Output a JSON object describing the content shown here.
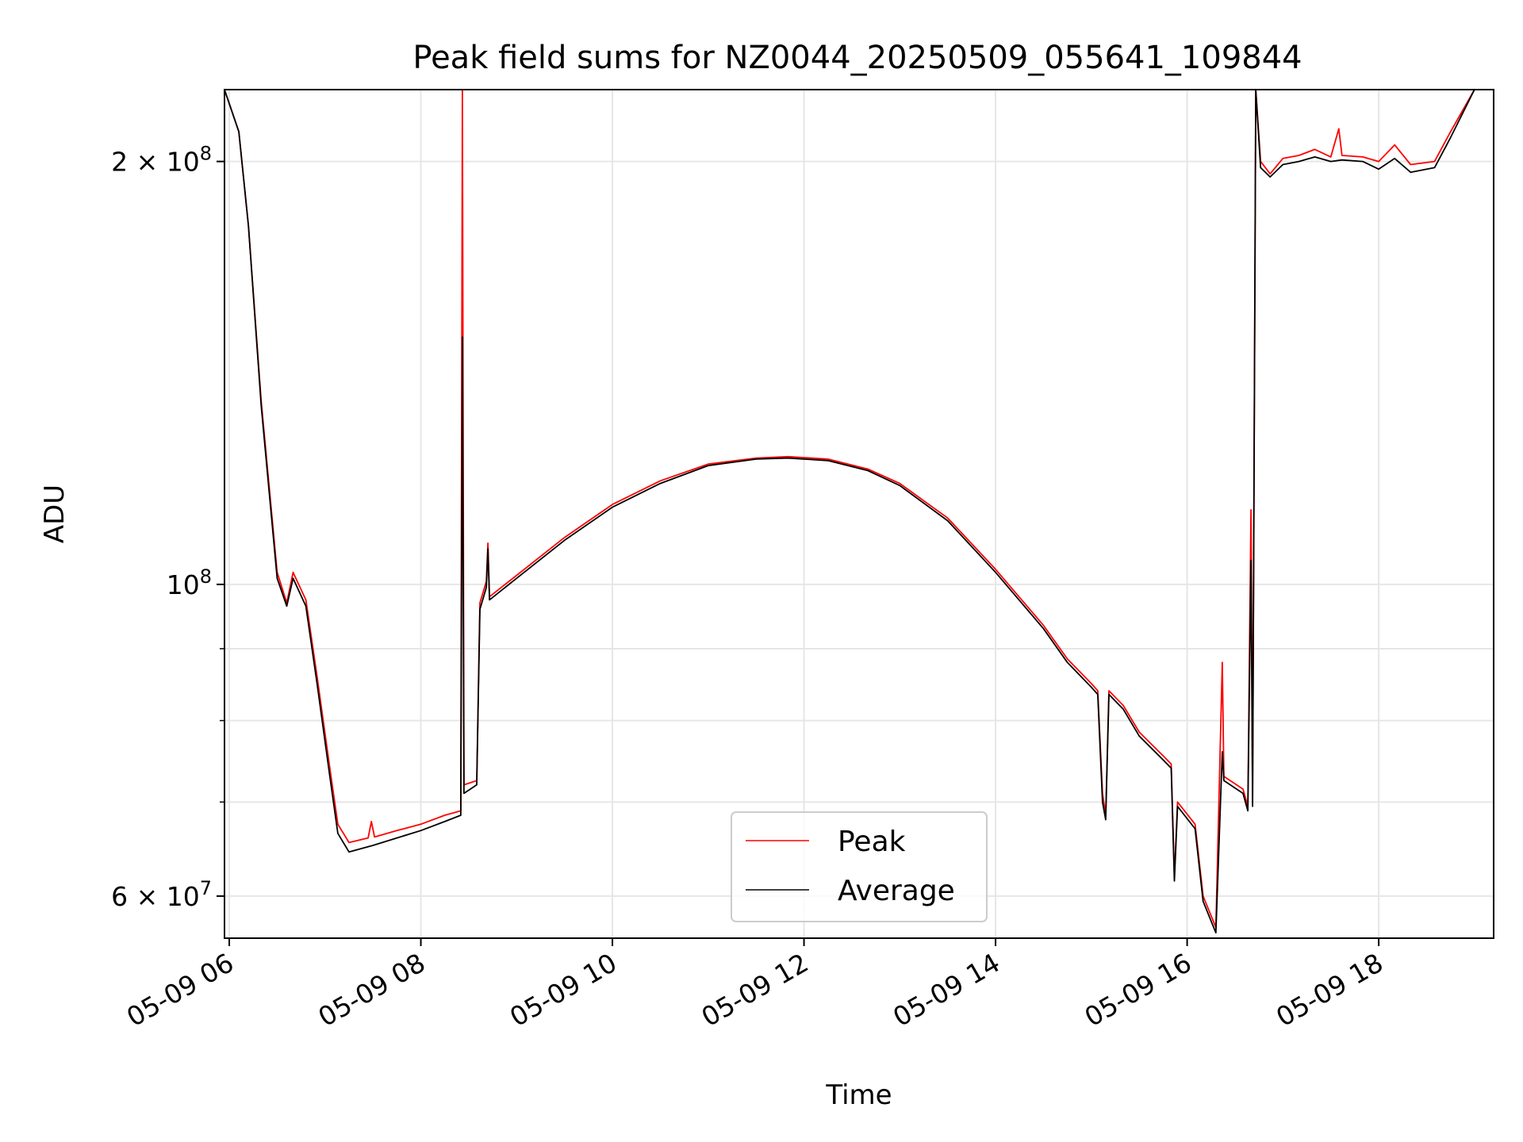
{
  "chart_data": {
    "type": "line",
    "title": "Peak field sums for NZ0044_20250509_055641_109844",
    "xlabel": "Time",
    "ylabel": "ADU",
    "x_range": [
      "2025-05-09 05:57",
      "2025-05-09 19:12"
    ],
    "y_scale": "log",
    "y_range": [
      56000000,
      225000000
    ],
    "x_ticks": [
      {
        "t": "2025-05-09 06:00",
        "label": "05-09 06"
      },
      {
        "t": "2025-05-09 08:00",
        "label": "05-09 08"
      },
      {
        "t": "2025-05-09 10:00",
        "label": "05-09 10"
      },
      {
        "t": "2025-05-09 12:00",
        "label": "05-09 12"
      },
      {
        "t": "2025-05-09 14:00",
        "label": "05-09 14"
      },
      {
        "t": "2025-05-09 16:00",
        "label": "05-09 16"
      },
      {
        "t": "2025-05-09 18:00",
        "label": "05-09 18"
      }
    ],
    "y_major_ticks": [
      {
        "value": 60000000,
        "base": "6 × 10",
        "exp": "7"
      },
      {
        "value": 100000000,
        "base": "10",
        "exp": "8"
      },
      {
        "value": 200000000,
        "base": "2 × 10",
        "exp": "8"
      }
    ],
    "y_minor_ticks": [
      70000000,
      80000000,
      90000000
    ],
    "grid": true,
    "legend_position": "bottom-center",
    "series": [
      {
        "name": "Peak",
        "color": "#ff0000",
        "points": [
          [
            "2025-05-09 05:57",
            225000000
          ],
          [
            "2025-05-09 06:06",
            210000000
          ],
          [
            "2025-05-09 06:12",
            180000000
          ],
          [
            "2025-05-09 06:20",
            135000000
          ],
          [
            "2025-05-09 06:30",
            102000000
          ],
          [
            "2025-05-09 06:36",
            97000000
          ],
          [
            "2025-05-09 06:40",
            102000000
          ],
          [
            "2025-05-09 06:48",
            97500000
          ],
          [
            "2025-05-09 06:55",
            86000000
          ],
          [
            "2025-05-09 07:03",
            74000000
          ],
          [
            "2025-05-09 07:08",
            67500000
          ],
          [
            "2025-05-09 07:15",
            65500000
          ],
          [
            "2025-05-09 07:27",
            66000000
          ],
          [
            "2025-05-09 07:29",
            67800000
          ],
          [
            "2025-05-09 07:31",
            66100000
          ],
          [
            "2025-05-09 07:45",
            66800000
          ],
          [
            "2025-05-09 08:00",
            67500000
          ],
          [
            "2025-05-09 08:15",
            68500000
          ],
          [
            "2025-05-09 08:25",
            69000000
          ],
          [
            "2025-05-09 08:26",
            225000000
          ],
          [
            "2025-05-09 08:27",
            72000000
          ],
          [
            "2025-05-09 08:35",
            72500000
          ],
          [
            "2025-05-09 08:37",
            97000000
          ],
          [
            "2025-05-09 08:41",
            100500000
          ],
          [
            "2025-05-09 08:42",
            107000000
          ],
          [
            "2025-05-09 08:43",
            98000000
          ],
          [
            "2025-05-09 09:00",
            101500000
          ],
          [
            "2025-05-09 09:30",
            108000000
          ],
          [
            "2025-05-09 10:00",
            114000000
          ],
          [
            "2025-05-09 10:30",
            118500000
          ],
          [
            "2025-05-09 11:00",
            121800000
          ],
          [
            "2025-05-09 11:30",
            123000000
          ],
          [
            "2025-05-09 11:50",
            123300000
          ],
          [
            "2025-05-09 12:15",
            122800000
          ],
          [
            "2025-05-09 12:40",
            120800000
          ],
          [
            "2025-05-09 13:00",
            118000000
          ],
          [
            "2025-05-09 13:30",
            111500000
          ],
          [
            "2025-05-09 14:00",
            102500000
          ],
          [
            "2025-05-09 14:30",
            93500000
          ],
          [
            "2025-05-09 14:45",
            88500000
          ],
          [
            "2025-05-09 15:00",
            85000000
          ],
          [
            "2025-05-09 15:04",
            84000000
          ],
          [
            "2025-05-09 15:07",
            71000000
          ],
          [
            "2025-05-09 15:09",
            68500000
          ],
          [
            "2025-05-09 15:11",
            84000000
          ],
          [
            "2025-05-09 15:20",
            82000000
          ],
          [
            "2025-05-09 15:30",
            78500000
          ],
          [
            "2025-05-09 15:45",
            75500000
          ],
          [
            "2025-05-09 15:50",
            74500000
          ],
          [
            "2025-05-09 15:52",
            62000000
          ],
          [
            "2025-05-09 15:54",
            70000000
          ],
          [
            "2025-05-09 16:05",
            67500000
          ],
          [
            "2025-05-09 16:10",
            60000000
          ],
          [
            "2025-05-09 16:18",
            57000000
          ],
          [
            "2025-05-09 16:22",
            88000000
          ],
          [
            "2025-05-09 16:23",
            73000000
          ],
          [
            "2025-05-09 16:35",
            71500000
          ],
          [
            "2025-05-09 16:38",
            69500000
          ],
          [
            "2025-05-09 16:40",
            113000000
          ],
          [
            "2025-05-09 16:41",
            70000000
          ],
          [
            "2025-05-09 16:43",
            225000000
          ],
          [
            "2025-05-09 16:46",
            200000000
          ],
          [
            "2025-05-09 16:52",
            196000000
          ],
          [
            "2025-05-09 17:00",
            201000000
          ],
          [
            "2025-05-09 17:10",
            202000000
          ],
          [
            "2025-05-09 17:20",
            204000000
          ],
          [
            "2025-05-09 17:30",
            201500000
          ],
          [
            "2025-05-09 17:35",
            211000000
          ],
          [
            "2025-05-09 17:37",
            202000000
          ],
          [
            "2025-05-09 17:50",
            201500000
          ],
          [
            "2025-05-09 18:00",
            200000000
          ],
          [
            "2025-05-09 18:10",
            205500000
          ],
          [
            "2025-05-09 18:20",
            199000000
          ],
          [
            "2025-05-09 18:35",
            200000000
          ],
          [
            "2025-05-09 18:45",
            210000000
          ],
          [
            "2025-05-09 19:00",
            225000000
          ],
          [
            "2025-05-09 19:12",
            225000000
          ]
        ]
      },
      {
        "name": "Average",
        "color": "#000000",
        "points": [
          [
            "2025-05-09 05:57",
            225000000
          ],
          [
            "2025-05-09 06:06",
            210000000
          ],
          [
            "2025-05-09 06:12",
            180000000
          ],
          [
            "2025-05-09 06:20",
            134000000
          ],
          [
            "2025-05-09 06:30",
            101000000
          ],
          [
            "2025-05-09 06:36",
            96500000
          ],
          [
            "2025-05-09 06:40",
            101000000
          ],
          [
            "2025-05-09 06:48",
            96500000
          ],
          [
            "2025-05-09 06:55",
            85000000
          ],
          [
            "2025-05-09 07:03",
            73000000
          ],
          [
            "2025-05-09 07:08",
            66500000
          ],
          [
            "2025-05-09 07:15",
            64500000
          ],
          [
            "2025-05-09 07:30",
            65200000
          ],
          [
            "2025-05-09 07:45",
            66000000
          ],
          [
            "2025-05-09 08:00",
            66800000
          ],
          [
            "2025-05-09 08:15",
            67800000
          ],
          [
            "2025-05-09 08:25",
            68500000
          ],
          [
            "2025-05-09 08:26",
            150000000
          ],
          [
            "2025-05-09 08:27",
            71000000
          ],
          [
            "2025-05-09 08:35",
            72000000
          ],
          [
            "2025-05-09 08:37",
            96000000
          ],
          [
            "2025-05-09 08:41",
            99500000
          ],
          [
            "2025-05-09 08:42",
            106000000
          ],
          [
            "2025-05-09 08:43",
            97500000
          ],
          [
            "2025-05-09 09:00",
            101000000
          ],
          [
            "2025-05-09 09:30",
            107500000
          ],
          [
            "2025-05-09 10:00",
            113500000
          ],
          [
            "2025-05-09 10:30",
            118000000
          ],
          [
            "2025-05-09 11:00",
            121500000
          ],
          [
            "2025-05-09 11:30",
            122800000
          ],
          [
            "2025-05-09 11:50",
            123000000
          ],
          [
            "2025-05-09 12:15",
            122500000
          ],
          [
            "2025-05-09 12:40",
            120500000
          ],
          [
            "2025-05-09 13:00",
            117600000
          ],
          [
            "2025-05-09 13:30",
            111000000
          ],
          [
            "2025-05-09 14:00",
            102000000
          ],
          [
            "2025-05-09 14:30",
            93000000
          ],
          [
            "2025-05-09 14:45",
            88000000
          ],
          [
            "2025-05-09 15:00",
            84500000
          ],
          [
            "2025-05-09 15:04",
            83500000
          ],
          [
            "2025-05-09 15:07",
            70000000
          ],
          [
            "2025-05-09 15:09",
            68000000
          ],
          [
            "2025-05-09 15:11",
            83500000
          ],
          [
            "2025-05-09 15:20",
            81500000
          ],
          [
            "2025-05-09 15:30",
            78000000
          ],
          [
            "2025-05-09 15:45",
            75000000
          ],
          [
            "2025-05-09 15:50",
            74000000
          ],
          [
            "2025-05-09 15:52",
            61500000
          ],
          [
            "2025-05-09 15:54",
            69500000
          ],
          [
            "2025-05-09 16:05",
            67000000
          ],
          [
            "2025-05-09 16:10",
            59500000
          ],
          [
            "2025-05-09 16:18",
            56500000
          ],
          [
            "2025-05-09 16:22",
            76000000
          ],
          [
            "2025-05-09 16:23",
            72500000
          ],
          [
            "2025-05-09 16:35",
            71000000
          ],
          [
            "2025-05-09 16:38",
            69000000
          ],
          [
            "2025-05-09 16:40",
            104000000
          ],
          [
            "2025-05-09 16:41",
            69500000
          ],
          [
            "2025-05-09 16:43",
            225000000
          ],
          [
            "2025-05-09 16:46",
            198000000
          ],
          [
            "2025-05-09 16:52",
            195000000
          ],
          [
            "2025-05-09 17:00",
            199000000
          ],
          [
            "2025-05-09 17:10",
            200000000
          ],
          [
            "2025-05-09 17:20",
            201500000
          ],
          [
            "2025-05-09 17:30",
            200000000
          ],
          [
            "2025-05-09 17:37",
            200500000
          ],
          [
            "2025-05-09 17:50",
            200000000
          ],
          [
            "2025-05-09 18:00",
            197500000
          ],
          [
            "2025-05-09 18:10",
            201000000
          ],
          [
            "2025-05-09 18:20",
            196500000
          ],
          [
            "2025-05-09 18:35",
            198000000
          ],
          [
            "2025-05-09 18:45",
            208000000
          ],
          [
            "2025-05-09 19:00",
            225000000
          ],
          [
            "2025-05-09 19:12",
            225000000
          ]
        ]
      }
    ]
  }
}
